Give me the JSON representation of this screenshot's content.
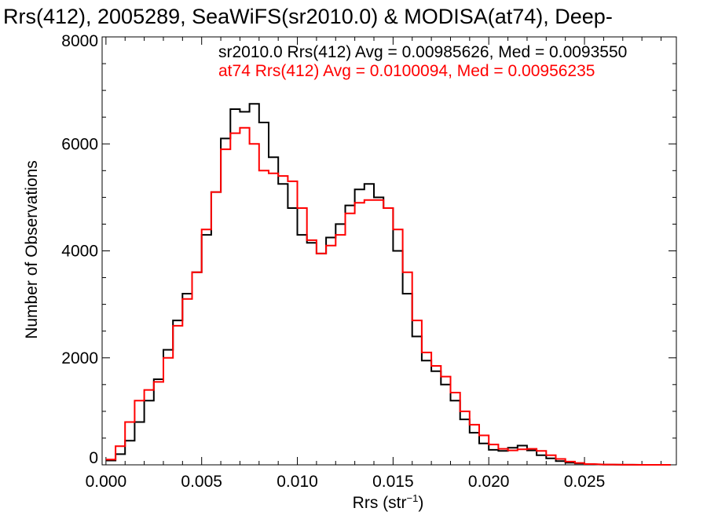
{
  "chart_data": {
    "type": "line",
    "title": "Rrs(412), 2005289, SeaWiFS(sr2010.0) & MODISA(at74), Deep-",
    "xlabel_main": "Rrs (str",
    "xlabel_sup": "−1",
    "xlabel_close": ")",
    "ylabel": "Number of Observations",
    "xlim": [
      -0.0002,
      0.0298
    ],
    "ylim": [
      0,
      8000
    ],
    "x_tick_labels": [
      "0.000",
      "0.005",
      "0.010",
      "0.015",
      "0.020",
      "0.025"
    ],
    "x_ticks": [
      0.0,
      0.005,
      0.01,
      0.015,
      0.02,
      0.025
    ],
    "y_tick_labels": [
      "0",
      "2000",
      "4000",
      "6000",
      "8000"
    ],
    "y_ticks": [
      0,
      2000,
      4000,
      6000,
      8000
    ],
    "grid": false,
    "legend_placement": "top-right",
    "series": [
      {
        "name": "sr2010.0 Rrs(412) Avg = 0.00985626, Med = 0.0093550",
        "color": "#000000",
        "x": [
          0.0,
          0.0005,
          0.001,
          0.0015,
          0.002,
          0.0025,
          0.003,
          0.0035,
          0.004,
          0.0045,
          0.005,
          0.0055,
          0.006,
          0.0065,
          0.007,
          0.0075,
          0.008,
          0.0085,
          0.009,
          0.0095,
          0.01,
          0.0105,
          0.011,
          0.0115,
          0.012,
          0.0125,
          0.013,
          0.0135,
          0.014,
          0.0145,
          0.015,
          0.0155,
          0.016,
          0.0165,
          0.017,
          0.0175,
          0.018,
          0.0185,
          0.019,
          0.0195,
          0.02,
          0.0205,
          0.021,
          0.0215,
          0.022,
          0.0225,
          0.023,
          0.0235,
          0.024,
          0.0245,
          0.025,
          0.026,
          0.027,
          0.028,
          0.029
        ],
        "y": [
          80,
          200,
          450,
          800,
          1200,
          1600,
          2150,
          2700,
          3200,
          3600,
          4300,
          5100,
          6100,
          6650,
          6600,
          6750,
          6400,
          5750,
          5250,
          4800,
          4300,
          4150,
          3950,
          4250,
          4500,
          4850,
          5150,
          5250,
          5000,
          4800,
          4000,
          3200,
          2400,
          1950,
          1750,
          1500,
          1200,
          850,
          600,
          400,
          280,
          260,
          320,
          360,
          270,
          180,
          120,
          70,
          40,
          25,
          10,
          5,
          2,
          0,
          0
        ]
      },
      {
        "name": "at74 Rrs(412) Avg = 0.0100094, Med = 0.00956235",
        "color": "#ff0000",
        "x": [
          0.0,
          0.0005,
          0.001,
          0.0015,
          0.002,
          0.0025,
          0.003,
          0.0035,
          0.004,
          0.0045,
          0.005,
          0.0055,
          0.006,
          0.0065,
          0.007,
          0.0075,
          0.008,
          0.0085,
          0.009,
          0.0095,
          0.01,
          0.0105,
          0.011,
          0.0115,
          0.012,
          0.0125,
          0.013,
          0.0135,
          0.014,
          0.0145,
          0.015,
          0.0155,
          0.016,
          0.0165,
          0.017,
          0.0175,
          0.018,
          0.0185,
          0.019,
          0.0195,
          0.02,
          0.0205,
          0.021,
          0.0215,
          0.022,
          0.0225,
          0.023,
          0.0235,
          0.024,
          0.0245,
          0.025,
          0.026,
          0.027,
          0.028,
          0.029
        ],
        "y": [
          100,
          350,
          800,
          1200,
          1400,
          1550,
          2000,
          2600,
          3100,
          3600,
          4400,
          5100,
          5900,
          6200,
          6300,
          6000,
          5500,
          5450,
          5400,
          5300,
          4800,
          4200,
          3950,
          4100,
          4300,
          4700,
          4900,
          4950,
          4950,
          4800,
          4400,
          3600,
          2700,
          2100,
          1850,
          1650,
          1350,
          1000,
          750,
          550,
          380,
          300,
          270,
          290,
          300,
          260,
          180,
          110,
          60,
          35,
          15,
          6,
          2,
          0,
          0
        ]
      }
    ]
  },
  "colors": {
    "axes": "#000000",
    "background": "#ffffff"
  }
}
